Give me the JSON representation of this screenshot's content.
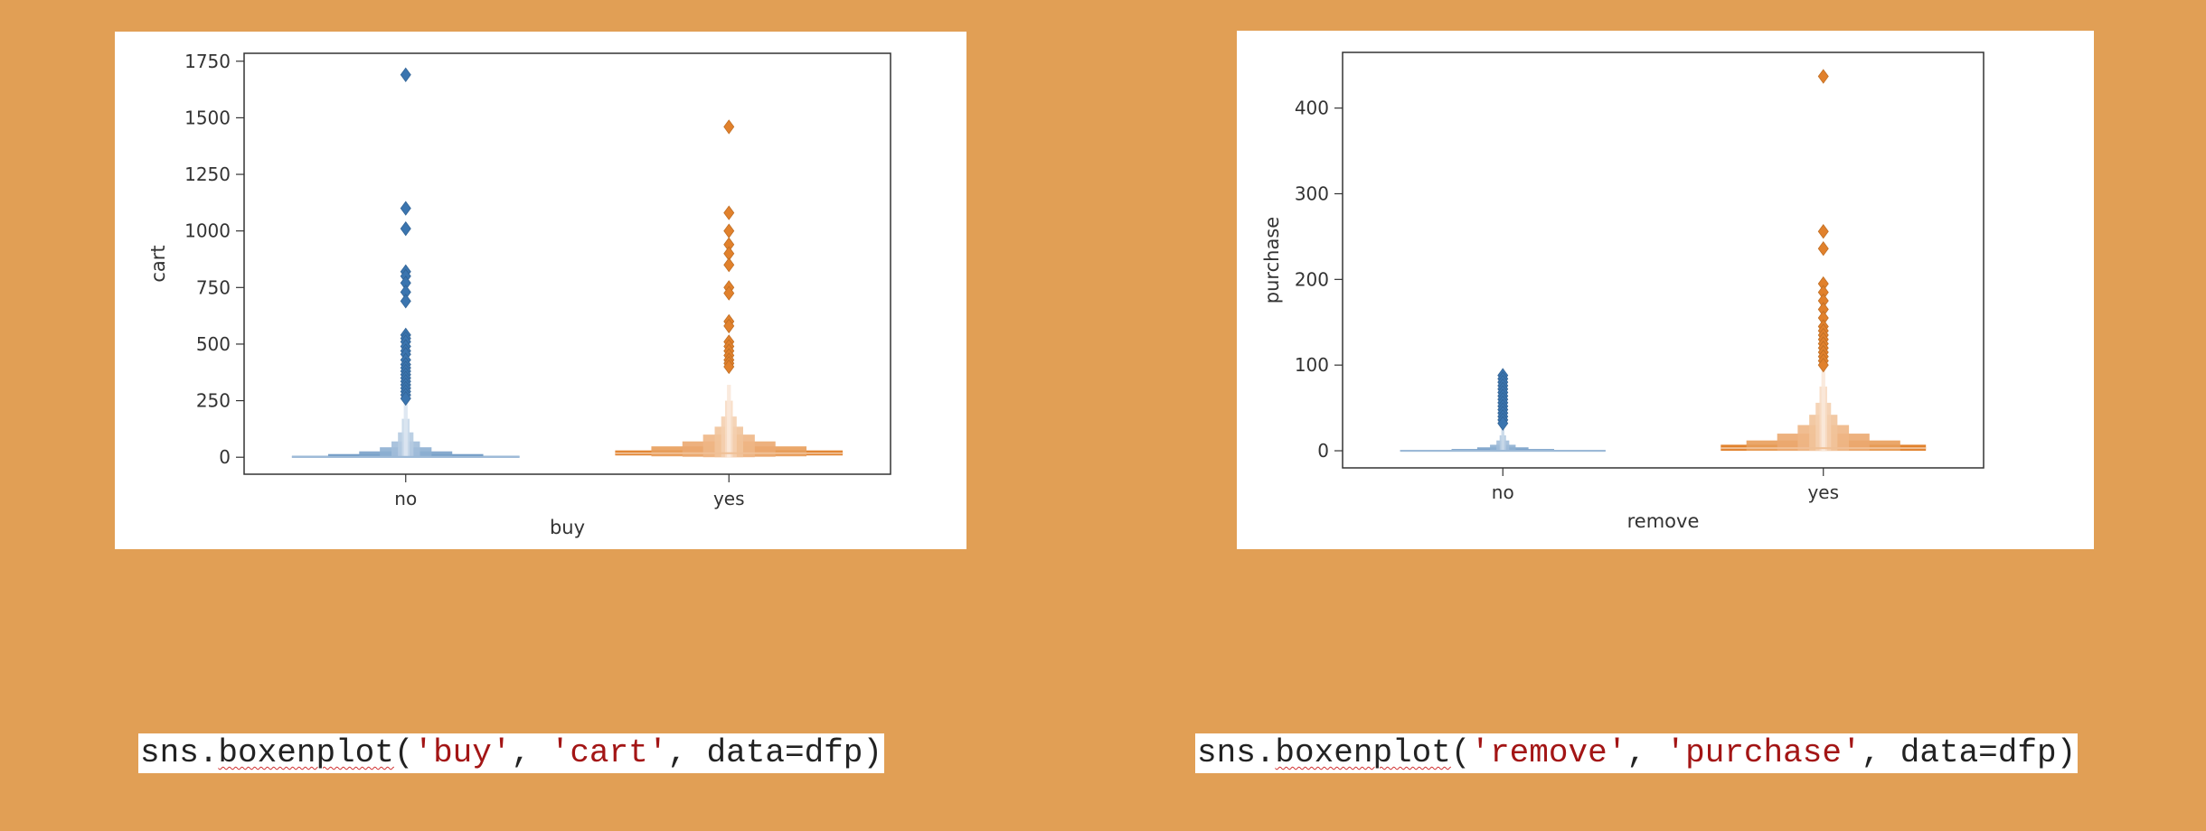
{
  "colors": {
    "background": "#e19f55",
    "series_no": "#3b75af",
    "series_yes": "#e1812c",
    "string_literal": "#a31515",
    "spellcheck": "#d03030"
  },
  "chart_data": [
    {
      "type": "boxen",
      "title": "",
      "xlabel": "buy",
      "ylabel": "cart",
      "categories": [
        "no",
        "yes"
      ],
      "ylim": [
        -75,
        1785
      ],
      "yticks": [
        0,
        250,
        500,
        750,
        1000,
        1250,
        1500,
        1750
      ],
      "ytick_labels": [
        "0",
        "250",
        "500",
        "750",
        "1000",
        "1250",
        "1500",
        "1750"
      ],
      "grid": false,
      "series": [
        {
          "category": "no",
          "color": "#3b75af",
          "median": 2,
          "boxes": [
            {
              "low": 0,
              "high": 6,
              "width": 0.88
            },
            {
              "low": 0,
              "high": 14,
              "width": 0.6
            },
            {
              "low": 0,
              "high": 26,
              "width": 0.36
            },
            {
              "low": 0,
              "high": 44,
              "width": 0.2
            },
            {
              "low": 0,
              "high": 70,
              "width": 0.11
            },
            {
              "low": 0,
              "high": 110,
              "width": 0.06
            },
            {
              "low": 0,
              "high": 170,
              "width": 0.03
            },
            {
              "low": 0,
              "high": 240,
              "width": 0.015
            }
          ],
          "outliers": [
            1690,
            1100,
            1010,
            820,
            800,
            770,
            730,
            690,
            540,
            525,
            510,
            490,
            470,
            455,
            430,
            410,
            395,
            380,
            365,
            350,
            335,
            320,
            305,
            290,
            275,
            260
          ]
        },
        {
          "category": "yes",
          "color": "#e1812c",
          "median": 18,
          "boxes": [
            {
              "low": 8,
              "high": 30,
              "width": 0.88
            },
            {
              "low": 4,
              "high": 48,
              "width": 0.6
            },
            {
              "low": 2,
              "high": 70,
              "width": 0.36
            },
            {
              "low": 0,
              "high": 100,
              "width": 0.2
            },
            {
              "low": 0,
              "high": 135,
              "width": 0.11
            },
            {
              "low": 0,
              "high": 180,
              "width": 0.06
            },
            {
              "low": 0,
              "high": 250,
              "width": 0.03
            },
            {
              "low": 0,
              "high": 320,
              "width": 0.015
            }
          ],
          "outliers": [
            1460,
            1080,
            1000,
            940,
            900,
            850,
            750,
            725,
            600,
            580,
            510,
            490,
            470,
            450,
            430,
            415,
            400
          ]
        }
      ]
    },
    {
      "type": "boxen",
      "title": "",
      "xlabel": "remove",
      "ylabel": "purchase",
      "categories": [
        "no",
        "yes"
      ],
      "ylim": [
        -20,
        465
      ],
      "yticks": [
        0,
        100,
        200,
        300,
        400
      ],
      "ytick_labels": [
        "0",
        "100",
        "200",
        "300",
        "400"
      ],
      "grid": false,
      "series": [
        {
          "category": "no",
          "color": "#3b75af",
          "median": 0,
          "boxes": [
            {
              "low": 0,
              "high": 1,
              "width": 0.8
            },
            {
              "low": 0,
              "high": 2,
              "width": 0.4
            },
            {
              "low": 0,
              "high": 4,
              "width": 0.2
            },
            {
              "low": 0,
              "high": 7,
              "width": 0.1
            },
            {
              "low": 0,
              "high": 12,
              "width": 0.05
            },
            {
              "low": 0,
              "high": 18,
              "width": 0.025
            },
            {
              "low": 0,
              "high": 25,
              "width": 0.012
            }
          ],
          "outliers": [
            88,
            84,
            80,
            76,
            72,
            68,
            64,
            60,
            56,
            52,
            48,
            44,
            40,
            36,
            32
          ]
        },
        {
          "category": "yes",
          "color": "#e1812c",
          "median": 3,
          "boxes": [
            {
              "low": 0,
              "high": 7,
              "width": 0.8
            },
            {
              "low": 0,
              "high": 12,
              "width": 0.6
            },
            {
              "low": 0,
              "high": 20,
              "width": 0.36
            },
            {
              "low": 0,
              "high": 30,
              "width": 0.2
            },
            {
              "low": 0,
              "high": 42,
              "width": 0.11
            },
            {
              "low": 0,
              "high": 56,
              "width": 0.06
            },
            {
              "low": 0,
              "high": 75,
              "width": 0.03
            },
            {
              "low": 0,
              "high": 95,
              "width": 0.015
            }
          ],
          "outliers": [
            437,
            256,
            236,
            195,
            185,
            175,
            165,
            155,
            145,
            140,
            135,
            130,
            125,
            120,
            115,
            110,
            105,
            100
          ]
        }
      ]
    }
  ],
  "code": [
    {
      "fn_prefix": "sns.",
      "fn_name": "boxenplot",
      "open_paren": "(",
      "arg1": "'buy'",
      "sep": ", ",
      "arg2": "'cart'",
      "rest": ", data=dfp)"
    },
    {
      "fn_prefix": "sns.",
      "fn_name": "boxenplot",
      "open_paren": "(",
      "arg1": "'remove'",
      "sep": ", ",
      "arg2": "'purchase'",
      "rest": ", data=dfp)"
    }
  ]
}
